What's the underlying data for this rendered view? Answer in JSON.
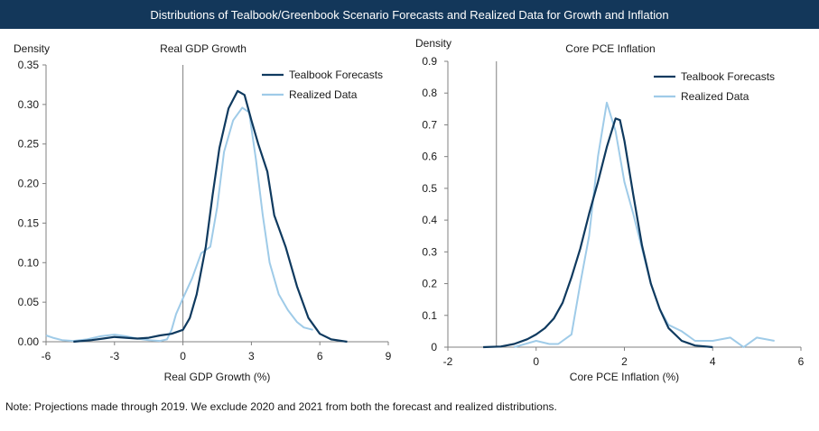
{
  "banner_title": "Distributions of Tealbook/Greenbook Scenario Forecasts and Realized Data for Growth and Inflation",
  "note": "Note: Projections made through 2019. We exclude 2020 and 2021 from both the forecast and realized distributions.",
  "colors": {
    "banner": "#13375a",
    "forecast": "#0f3a5f",
    "realized": "#9fcbe8",
    "axis": "#808080"
  },
  "chart_data": [
    {
      "type": "line",
      "title": "Real GDP Growth",
      "ylabel": "Density",
      "xlabel": "Real GDP Growth (%)",
      "xlim": [
        -6,
        9
      ],
      "ylim": [
        0,
        0.35
      ],
      "xticks": [
        -6,
        -3,
        0,
        3,
        6,
        9
      ],
      "xtick_labels": [
        "-6",
        "-3",
        "0",
        "3",
        "6",
        "9"
      ],
      "yticks": [
        0,
        0.05,
        0.1,
        0.15,
        0.2,
        0.25,
        0.3,
        0.35
      ],
      "ytick_labels": [
        "0.00",
        "0.05",
        "0.10",
        "0.15",
        "0.20",
        "0.25",
        "0.30",
        "0.35"
      ],
      "vline_x": 0,
      "legend_position": "top-right",
      "series": [
        {
          "name": "Tealbook Forecasts",
          "color": "#0f3a5f",
          "x": [
            -4.8,
            -4.0,
            -3.5,
            -3.0,
            -2.5,
            -2.0,
            -1.5,
            -1.0,
            -0.5,
            0.0,
            0.3,
            0.6,
            1.0,
            1.3,
            1.6,
            2.0,
            2.4,
            2.7,
            3.0,
            3.3,
            3.7,
            4.0,
            4.5,
            5.0,
            5.5,
            6.0,
            6.5,
            7.2
          ],
          "y": [
            0.0,
            0.002,
            0.004,
            0.006,
            0.005,
            0.004,
            0.005,
            0.008,
            0.01,
            0.015,
            0.03,
            0.06,
            0.12,
            0.185,
            0.245,
            0.295,
            0.317,
            0.312,
            0.28,
            0.25,
            0.215,
            0.16,
            0.12,
            0.07,
            0.03,
            0.01,
            0.003,
            0.0
          ]
        },
        {
          "name": "Realized Data",
          "color": "#9fcbe8",
          "x": [
            -6.0,
            -5.7,
            -5.3,
            -4.8,
            -4.2,
            -3.6,
            -3.0,
            -2.5,
            -2.0,
            -1.5,
            -1.0,
            -0.7,
            -0.5,
            -0.3,
            0.0,
            0.4,
            0.8,
            1.2,
            1.5,
            1.8,
            2.2,
            2.6,
            2.9,
            3.2,
            3.5,
            3.8,
            4.2,
            4.6,
            5.0,
            5.3,
            5.7
          ],
          "y": [
            0.008,
            0.005,
            0.002,
            0.001,
            0.003,
            0.007,
            0.009,
            0.007,
            0.004,
            0.002,
            0.001,
            0.003,
            0.015,
            0.035,
            0.055,
            0.08,
            0.112,
            0.12,
            0.17,
            0.24,
            0.28,
            0.296,
            0.29,
            0.23,
            0.16,
            0.1,
            0.06,
            0.04,
            0.025,
            0.018,
            0.015
          ]
        }
      ]
    },
    {
      "type": "line",
      "title": "Core PCE Inflation",
      "ylabel": "Density",
      "xlabel": "Core PCE Inflation (%)",
      "xlim": [
        -2,
        6
      ],
      "ylim": [
        0,
        0.9
      ],
      "xticks": [
        -2,
        0,
        2,
        4,
        6
      ],
      "xtick_labels": [
        "-2",
        "0",
        "2",
        "4",
        "6"
      ],
      "yticks": [
        0,
        0.1,
        0.2,
        0.3,
        0.4,
        0.5,
        0.6,
        0.7,
        0.8,
        0.9
      ],
      "ytick_labels": [
        "0",
        "0.1",
        "0.2",
        "0.3",
        "0.4",
        "0.5",
        "0.6",
        "0.7",
        "0.8",
        "0.9"
      ],
      "vline_x": -0.9,
      "legend_position": "top-right",
      "series": [
        {
          "name": "Tealbook Forecasts",
          "color": "#0f3a5f",
          "x": [
            -1.2,
            -0.8,
            -0.5,
            -0.2,
            0.0,
            0.2,
            0.4,
            0.6,
            0.8,
            1.0,
            1.2,
            1.4,
            1.6,
            1.8,
            1.9,
            2.0,
            2.2,
            2.4,
            2.6,
            2.8,
            3.0,
            3.3,
            3.6,
            4.0
          ],
          "y": [
            0.0,
            0.002,
            0.01,
            0.025,
            0.04,
            0.06,
            0.09,
            0.14,
            0.22,
            0.31,
            0.42,
            0.52,
            0.63,
            0.72,
            0.715,
            0.65,
            0.48,
            0.32,
            0.2,
            0.12,
            0.06,
            0.02,
            0.005,
            0.0
          ]
        },
        {
          "name": "Realized Data",
          "color": "#9fcbe8",
          "x": [
            -0.5,
            0.0,
            0.3,
            0.5,
            0.8,
            1.0,
            1.2,
            1.4,
            1.6,
            1.8,
            2.0,
            2.2,
            2.4,
            2.6,
            2.8,
            3.0,
            3.3,
            3.6,
            4.0,
            4.4,
            4.7,
            5.0,
            5.4
          ],
          "y": [
            0.0,
            0.02,
            0.01,
            0.01,
            0.04,
            0.2,
            0.35,
            0.6,
            0.77,
            0.68,
            0.52,
            0.42,
            0.31,
            0.2,
            0.12,
            0.07,
            0.05,
            0.02,
            0.02,
            0.03,
            0.0,
            0.03,
            0.02
          ]
        }
      ]
    }
  ]
}
